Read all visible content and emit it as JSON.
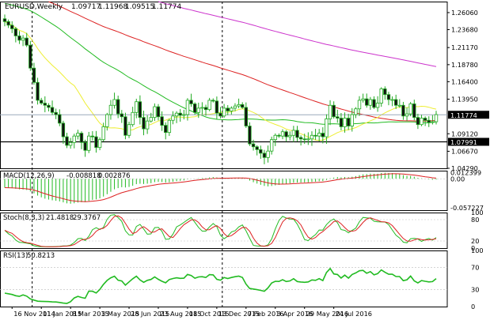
{
  "chart_data": {
    "type": "candlestick",
    "symbol_title": "EURUSD,Weekly",
    "ohlc_values": [
      "1.09717",
      "1.11968",
      "1.09515",
      "1.11774"
    ],
    "price_axis_labels": [
      "1.26060",
      "1.23680",
      "1.21170",
      "1.18780",
      "1.16400",
      "1.13950",
      "1.11774",
      "1.09120",
      "1.07991",
      "1.06670",
      "1.04290"
    ],
    "current_price": 1.11774,
    "hline_price": 1.07991,
    "price_ylim": [
      1.0429,
      1.276
    ],
    "x_tick_labels": [
      "16 Nov 2014",
      "11 Jan 2015",
      "8 Mar 2015",
      "3 May 2015",
      "28 Jun 2015",
      "23 Aug 2015",
      "18 Oct 2015",
      "13 Dec 2015",
      "7 Feb 2016",
      "3 Apr 2016",
      "29 May 2016",
      "24 Jul 2016"
    ],
    "vertical_markers": [
      "1 Jan 2015",
      "1 Jan 2016"
    ],
    "closes": [
      1.248,
      1.243,
      1.238,
      1.228,
      1.222,
      1.225,
      1.215,
      1.183,
      1.163,
      1.138,
      1.134,
      1.131,
      1.128,
      1.121,
      1.118,
      1.106,
      1.087,
      1.075,
      1.079,
      1.088,
      1.092,
      1.079,
      1.068,
      1.088,
      1.087,
      1.072,
      1.083,
      1.101,
      1.118,
      1.131,
      1.139,
      1.119,
      1.115,
      1.089,
      1.104,
      1.121,
      1.136,
      1.114,
      1.098,
      1.109,
      1.114,
      1.129,
      1.115,
      1.103,
      1.093,
      1.11,
      1.116,
      1.12,
      1.117,
      1.118,
      1.138,
      1.133,
      1.121,
      1.127,
      1.128,
      1.125,
      1.138,
      1.137,
      1.12,
      1.116,
      1.127,
      1.123,
      1.127,
      1.13,
      1.132,
      1.128,
      1.102,
      1.077,
      1.073,
      1.069,
      1.064,
      1.058,
      1.067,
      1.083,
      1.089,
      1.088,
      1.094,
      1.087,
      1.089,
      1.096,
      1.086,
      1.084,
      1.083,
      1.084,
      1.089,
      1.088,
      1.092,
      1.087,
      1.112,
      1.131,
      1.115,
      1.113,
      1.101,
      1.113,
      1.102,
      1.118,
      1.126,
      1.138,
      1.14,
      1.131,
      1.139,
      1.128,
      1.134,
      1.154,
      1.146,
      1.139,
      1.139,
      1.131,
      1.131,
      1.116,
      1.119,
      1.133,
      1.114,
      1.104,
      1.113,
      1.11,
      1.107,
      1.108,
      1.118
    ],
    "sma_slow_start": 1.34,
    "macd": {
      "label": "MACD(12,26,9)",
      "values": [
        "-0.008818",
        "0.002876"
      ],
      "axis_labels": [
        "0.012399",
        "0.00",
        "-0.057227"
      ],
      "ylim": [
        -0.062,
        0.016
      ]
    },
    "stoch": {
      "label": "Stoch(8,3,3)",
      "values": [
        "21.4818",
        "29.3767"
      ],
      "axis_labels": [
        "100",
        "80",
        "20",
        "0"
      ],
      "ylim": [
        0,
        100
      ]
    },
    "rsi": {
      "label": "RSI(13)",
      "values": [
        "50.8213"
      ],
      "axis_labels": [
        "100",
        "70",
        "30",
        "0"
      ],
      "ylim": [
        0,
        100
      ]
    }
  }
}
